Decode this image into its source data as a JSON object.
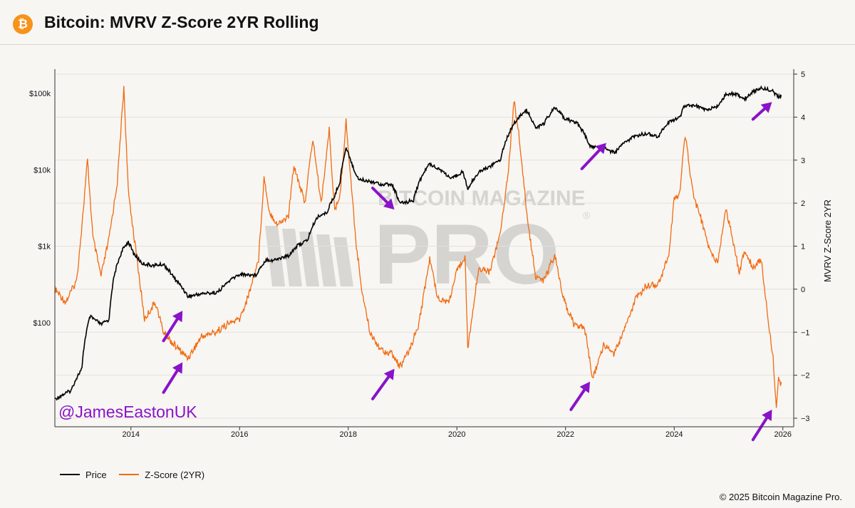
{
  "header": {
    "title": "Bitcoin: MVRV Z-Score 2YR Rolling",
    "logo_symbol": "₿",
    "logo_color": "#f7931a"
  },
  "watermark": {
    "line1": "BITCOIN MAGAZINE",
    "line2": "PRO",
    "registered": "®"
  },
  "annotation": {
    "handle": "@JamesEastonUK",
    "color": "#8a12c9"
  },
  "footer": {
    "copyright": "© 2025 Bitcoin Magazine Pro."
  },
  "chart_data": {
    "type": "line",
    "x_ticks": [
      "2014",
      "2016",
      "2018",
      "2020",
      "2022",
      "2024",
      "2026"
    ],
    "y_left": {
      "scale": "log",
      "tick_labels": [
        "$100",
        "$1k",
        "$10k",
        "$100k"
      ]
    },
    "y_right": {
      "label": "MVRV Z-Score 2YR",
      "range": [
        -3,
        5
      ],
      "tick_labels": [
        "−3",
        "−2",
        "−1",
        "0",
        "1",
        "2",
        "3",
        "4",
        "5"
      ]
    },
    "series": [
      {
        "name": "Price",
        "color": "#000000",
        "axis": "left",
        "points": [
          [
            2012.6,
            10
          ],
          [
            2012.9,
            13
          ],
          [
            2013.1,
            25
          ],
          [
            2013.25,
            120
          ],
          [
            2013.45,
            95
          ],
          [
            2013.6,
            110
          ],
          [
            2013.85,
            900
          ],
          [
            2013.95,
            1150
          ],
          [
            2014.05,
            800
          ],
          [
            2014.2,
            600
          ],
          [
            2014.4,
            560
          ],
          [
            2014.6,
            580
          ],
          [
            2014.8,
            380
          ],
          [
            2015.05,
            220
          ],
          [
            2015.3,
            240
          ],
          [
            2015.6,
            250
          ],
          [
            2015.85,
            370
          ],
          [
            2016.0,
            430
          ],
          [
            2016.3,
            420
          ],
          [
            2016.5,
            680
          ],
          [
            2016.6,
            650
          ],
          [
            2016.9,
            750
          ],
          [
            2017.05,
            1000
          ],
          [
            2017.25,
            1200
          ],
          [
            2017.45,
            2500
          ],
          [
            2017.6,
            2700
          ],
          [
            2017.75,
            4500
          ],
          [
            2017.85,
            7000
          ],
          [
            2017.96,
            19000
          ],
          [
            2018.1,
            10000
          ],
          [
            2018.2,
            7500
          ],
          [
            2018.45,
            7000
          ],
          [
            2018.6,
            6500
          ],
          [
            2018.8,
            6400
          ],
          [
            2018.95,
            3600
          ],
          [
            2019.2,
            4000
          ],
          [
            2019.35,
            8000
          ],
          [
            2019.5,
            12000
          ],
          [
            2019.7,
            10000
          ],
          [
            2019.9,
            7500
          ],
          [
            2020.1,
            9500
          ],
          [
            2020.2,
            5500
          ],
          [
            2020.4,
            9300
          ],
          [
            2020.6,
            11000
          ],
          [
            2020.8,
            13500
          ],
          [
            2020.95,
            29000
          ],
          [
            2021.1,
            45000
          ],
          [
            2021.28,
            60000
          ],
          [
            2021.45,
            35000
          ],
          [
            2021.6,
            40000
          ],
          [
            2021.8,
            64000
          ],
          [
            2022.0,
            46000
          ],
          [
            2022.2,
            42000
          ],
          [
            2022.45,
            20000
          ],
          [
            2022.7,
            19500
          ],
          [
            2022.9,
            16500
          ],
          [
            2023.1,
            23000
          ],
          [
            2023.3,
            28000
          ],
          [
            2023.5,
            30000
          ],
          [
            2023.7,
            27000
          ],
          [
            2023.9,
            42000
          ],
          [
            2024.1,
            48000
          ],
          [
            2024.2,
            70000
          ],
          [
            2024.4,
            68000
          ],
          [
            2024.6,
            60000
          ],
          [
            2024.8,
            68000
          ],
          [
            2024.95,
            95000
          ],
          [
            2025.1,
            100000
          ],
          [
            2025.3,
            85000
          ],
          [
            2025.45,
            105000
          ],
          [
            2025.6,
            118000
          ],
          [
            2025.8,
            110000
          ],
          [
            2025.9,
            90000
          ],
          [
            2025.97,
            92000
          ]
        ]
      },
      {
        "name": "Z-Score (2YR)",
        "color": "#f26a10",
        "axis": "right",
        "points": [
          [
            2012.6,
            0
          ],
          [
            2012.8,
            -0.3
          ],
          [
            2013.0,
            0.2
          ],
          [
            2013.1,
            1.5
          ],
          [
            2013.2,
            3.0
          ],
          [
            2013.3,
            1.2
          ],
          [
            2013.45,
            0.3
          ],
          [
            2013.6,
            1.2
          ],
          [
            2013.75,
            2.5
          ],
          [
            2013.87,
            4.7
          ],
          [
            2013.95,
            2.3
          ],
          [
            2014.1,
            0.8
          ],
          [
            2014.25,
            -0.7
          ],
          [
            2014.45,
            -0.3
          ],
          [
            2014.6,
            -1.0
          ],
          [
            2014.8,
            -1.3
          ],
          [
            2015.05,
            -1.6
          ],
          [
            2015.3,
            -1.1
          ],
          [
            2015.55,
            -1.0
          ],
          [
            2015.8,
            -0.8
          ],
          [
            2016.0,
            -0.7
          ],
          [
            2016.15,
            -0.2
          ],
          [
            2016.35,
            0.7
          ],
          [
            2016.45,
            2.6
          ],
          [
            2016.55,
            1.8
          ],
          [
            2016.7,
            1.5
          ],
          [
            2016.9,
            1.7
          ],
          [
            2017.0,
            2.9
          ],
          [
            2017.2,
            2.0
          ],
          [
            2017.35,
            3.5
          ],
          [
            2017.5,
            2.0
          ],
          [
            2017.65,
            3.7
          ],
          [
            2017.75,
            1.8
          ],
          [
            2017.85,
            2.2
          ],
          [
            2017.96,
            3.9
          ],
          [
            2018.05,
            2.5
          ],
          [
            2018.15,
            1.0
          ],
          [
            2018.25,
            0
          ],
          [
            2018.4,
            -1.0
          ],
          [
            2018.6,
            -1.4
          ],
          [
            2018.8,
            -1.5
          ],
          [
            2018.95,
            -1.8
          ],
          [
            2019.1,
            -1.5
          ],
          [
            2019.3,
            -0.8
          ],
          [
            2019.5,
            0.7
          ],
          [
            2019.65,
            -0.2
          ],
          [
            2019.85,
            -0.3
          ],
          [
            2020.0,
            0.4
          ],
          [
            2020.15,
            0.8
          ],
          [
            2020.2,
            -1.4
          ],
          [
            2020.4,
            0.5
          ],
          [
            2020.6,
            0.4
          ],
          [
            2020.8,
            1.3
          ],
          [
            2020.95,
            2.8
          ],
          [
            2021.05,
            4.4
          ],
          [
            2021.15,
            3.5
          ],
          [
            2021.3,
            1.6
          ],
          [
            2021.45,
            0.3
          ],
          [
            2021.6,
            0.2
          ],
          [
            2021.8,
            0.8
          ],
          [
            2021.95,
            -0.2
          ],
          [
            2022.15,
            -0.8
          ],
          [
            2022.35,
            -0.9
          ],
          [
            2022.5,
            -2.1
          ],
          [
            2022.7,
            -1.3
          ],
          [
            2022.9,
            -1.5
          ],
          [
            2023.1,
            -0.9
          ],
          [
            2023.3,
            -0.2
          ],
          [
            2023.5,
            0.1
          ],
          [
            2023.7,
            0.1
          ],
          [
            2023.9,
            0.8
          ],
          [
            2024.0,
            2.1
          ],
          [
            2024.1,
            2.2
          ],
          [
            2024.2,
            3.6
          ],
          [
            2024.35,
            2.2
          ],
          [
            2024.5,
            1.6
          ],
          [
            2024.65,
            0.9
          ],
          [
            2024.8,
            0.6
          ],
          [
            2024.95,
            1.9
          ],
          [
            2025.1,
            1.0
          ],
          [
            2025.2,
            0.4
          ],
          [
            2025.3,
            0.9
          ],
          [
            2025.45,
            0.5
          ],
          [
            2025.6,
            0.7
          ],
          [
            2025.72,
            -0.6
          ],
          [
            2025.82,
            -1.6
          ],
          [
            2025.88,
            -2.7
          ],
          [
            2025.92,
            -2.1
          ],
          [
            2025.97,
            -2.2
          ]
        ]
      }
    ],
    "legend": {
      "position": "bottom-left"
    },
    "arrows": [
      [
        2014.6,
        -1.2,
        2014.95,
        -0.5
      ],
      [
        2014.6,
        -2.4,
        2014.95,
        -1.7
      ],
      [
        2018.45,
        2.35,
        2018.85,
        1.85
      ],
      [
        2018.45,
        -2.55,
        2018.85,
        -1.85
      ],
      [
        2022.3,
        2.8,
        2022.75,
        3.4
      ],
      [
        2022.1,
        -2.8,
        2022.45,
        -2.15
      ],
      [
        2025.45,
        3.95,
        2025.8,
        4.35
      ],
      [
        2025.45,
        -3.5,
        2025.8,
        -2.8
      ]
    ],
    "arrow_color": "#8a12c9"
  }
}
